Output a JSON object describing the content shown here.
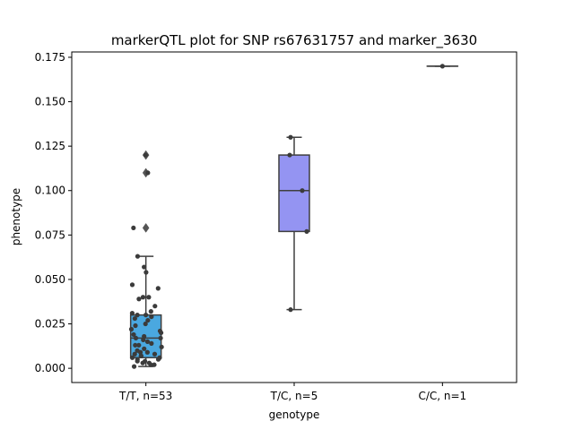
{
  "chart_data": {
    "type": "box",
    "title": "markerQTL plot for SNP rs67631757 and marker_3630",
    "xlabel": "genotype",
    "ylabel": "phenotype",
    "ylim": [
      -0.008,
      0.178
    ],
    "yticks": [
      "0.000",
      "0.025",
      "0.050",
      "0.075",
      "0.100",
      "0.125",
      "0.150",
      "0.175"
    ],
    "categories": [
      "T/T, n=53",
      "T/C, n=5",
      "C/C, n=1"
    ],
    "boxes": [
      {
        "category": "T/T, n=53",
        "color": "#4aa8e0",
        "q1": 0.006,
        "median": 0.017,
        "q3": 0.03,
        "whisker_low": 0.001,
        "whisker_high": 0.063,
        "outliers": [
          0.079,
          0.11,
          0.12
        ]
      },
      {
        "category": "T/C, n=5",
        "color": "#9494f2",
        "q1": 0.077,
        "median": 0.1,
        "q3": 0.12,
        "whisker_low": 0.033,
        "whisker_high": 0.13,
        "outliers": []
      },
      {
        "category": "C/C, n=1",
        "color": "#f28ec4",
        "q1": 0.17,
        "median": 0.17,
        "q3": 0.17,
        "whisker_low": 0.17,
        "whisker_high": 0.17,
        "outliers": []
      }
    ],
    "points": [
      {
        "category": "T/T, n=53",
        "values": [
          0.12,
          0.11,
          0.079,
          0.063,
          0.057,
          0.054,
          0.047,
          0.045,
          0.04,
          0.04,
          0.039,
          0.035,
          0.032,
          0.031,
          0.03,
          0.03,
          0.029,
          0.028,
          0.027,
          0.025,
          0.024,
          0.022,
          0.021,
          0.02,
          0.019,
          0.018,
          0.017,
          0.017,
          0.016,
          0.015,
          0.014,
          0.013,
          0.013,
          0.012,
          0.011,
          0.01,
          0.009,
          0.009,
          0.008,
          0.008,
          0.007,
          0.007,
          0.006,
          0.006,
          0.005,
          0.005,
          0.004,
          0.004,
          0.003,
          0.003,
          0.002,
          0.002,
          0.001
        ]
      },
      {
        "category": "T/C, n=5",
        "values": [
          0.13,
          0.12,
          0.1,
          0.077,
          0.033
        ]
      },
      {
        "category": "C/C, n=1",
        "values": [
          0.17
        ]
      }
    ]
  }
}
